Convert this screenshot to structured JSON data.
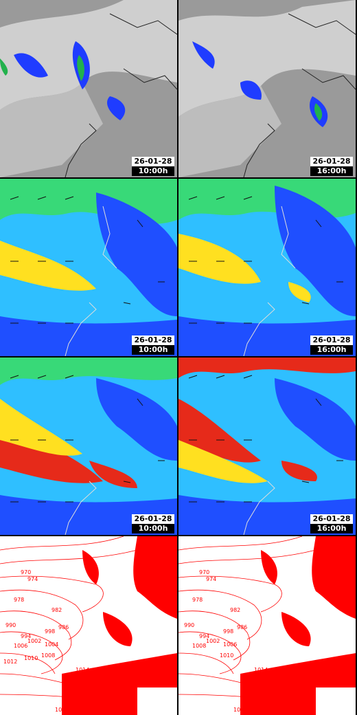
{
  "panels": [
    {
      "row": "satellite",
      "col": "left",
      "date": "26-01-28",
      "time": "10:00h"
    },
    {
      "row": "satellite",
      "col": "right",
      "date": "26-01-28",
      "time": "16:00h"
    },
    {
      "row": "wind-low",
      "col": "left",
      "date": "26-01-28",
      "time": "10:00h"
    },
    {
      "row": "wind-low",
      "col": "right",
      "date": "26-01-28",
      "time": "16:00h"
    },
    {
      "row": "wind-high",
      "col": "left",
      "date": "26-01-28",
      "time": "10:00h"
    },
    {
      "row": "wind-high",
      "col": "right",
      "date": "26-01-28",
      "time": "16:00h"
    },
    {
      "row": "pressure",
      "col": "left"
    },
    {
      "row": "pressure",
      "col": "right"
    }
  ],
  "pressure_labels_left": [
    "970",
    "974",
    "978",
    "982",
    "986",
    "990",
    "994",
    "998",
    "1002",
    "1004",
    "1006",
    "1008",
    "1010",
    "1012",
    "1014",
    "1016",
    "1018",
    "1022"
  ],
  "pressure_labels_right": [
    "970",
    "974",
    "978",
    "982",
    "986",
    "990",
    "994",
    "998",
    "1002",
    "1006",
    "1008",
    "1010",
    "1014",
    "1018",
    "1022"
  ],
  "colors": {
    "cloud": "#d8d8d8",
    "precip_blue": "#1f3cff",
    "precip_green": "#22b14c",
    "wind_blue": "#1f4fff",
    "wind_cyan": "#2fbfff",
    "wind_green": "#38d978",
    "wind_yellow": "#ffe020",
    "wind_red": "#e62a1a",
    "isobar": "#ff0000"
  }
}
